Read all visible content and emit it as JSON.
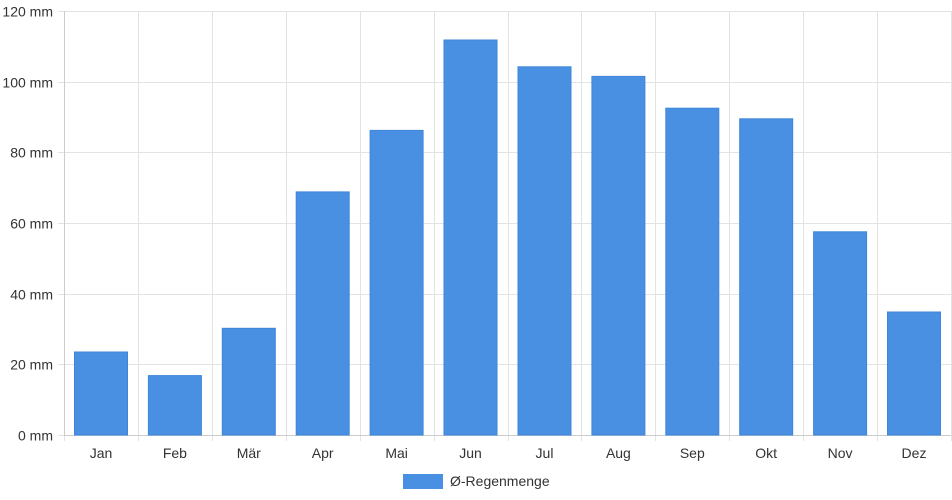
{
  "chart_data": {
    "type": "bar",
    "categories": [
      "Jan",
      "Feb",
      "Mär",
      "Apr",
      "Mai",
      "Jun",
      "Jul",
      "Aug",
      "Sep",
      "Okt",
      "Nov",
      "Dez"
    ],
    "series": [
      {
        "name": "Ø-Regenmenge",
        "color": "#4a90e2",
        "values": [
          23.5,
          16.8,
          30.2,
          68.8,
          86.2,
          111.8,
          104.2,
          101.5,
          92.5,
          89.5,
          57.5,
          34.8
        ]
      }
    ],
    "y_unit": "mm",
    "ylim": [
      0,
      120
    ],
    "y_ticks": [
      0,
      20,
      40,
      60,
      80,
      100,
      120
    ],
    "y_tick_labels": [
      "0 mm",
      "20 mm",
      "40 mm",
      "60 mm",
      "80 mm",
      "100 mm",
      "120 mm"
    ],
    "grid": true,
    "legend_position": "bottom-center"
  }
}
